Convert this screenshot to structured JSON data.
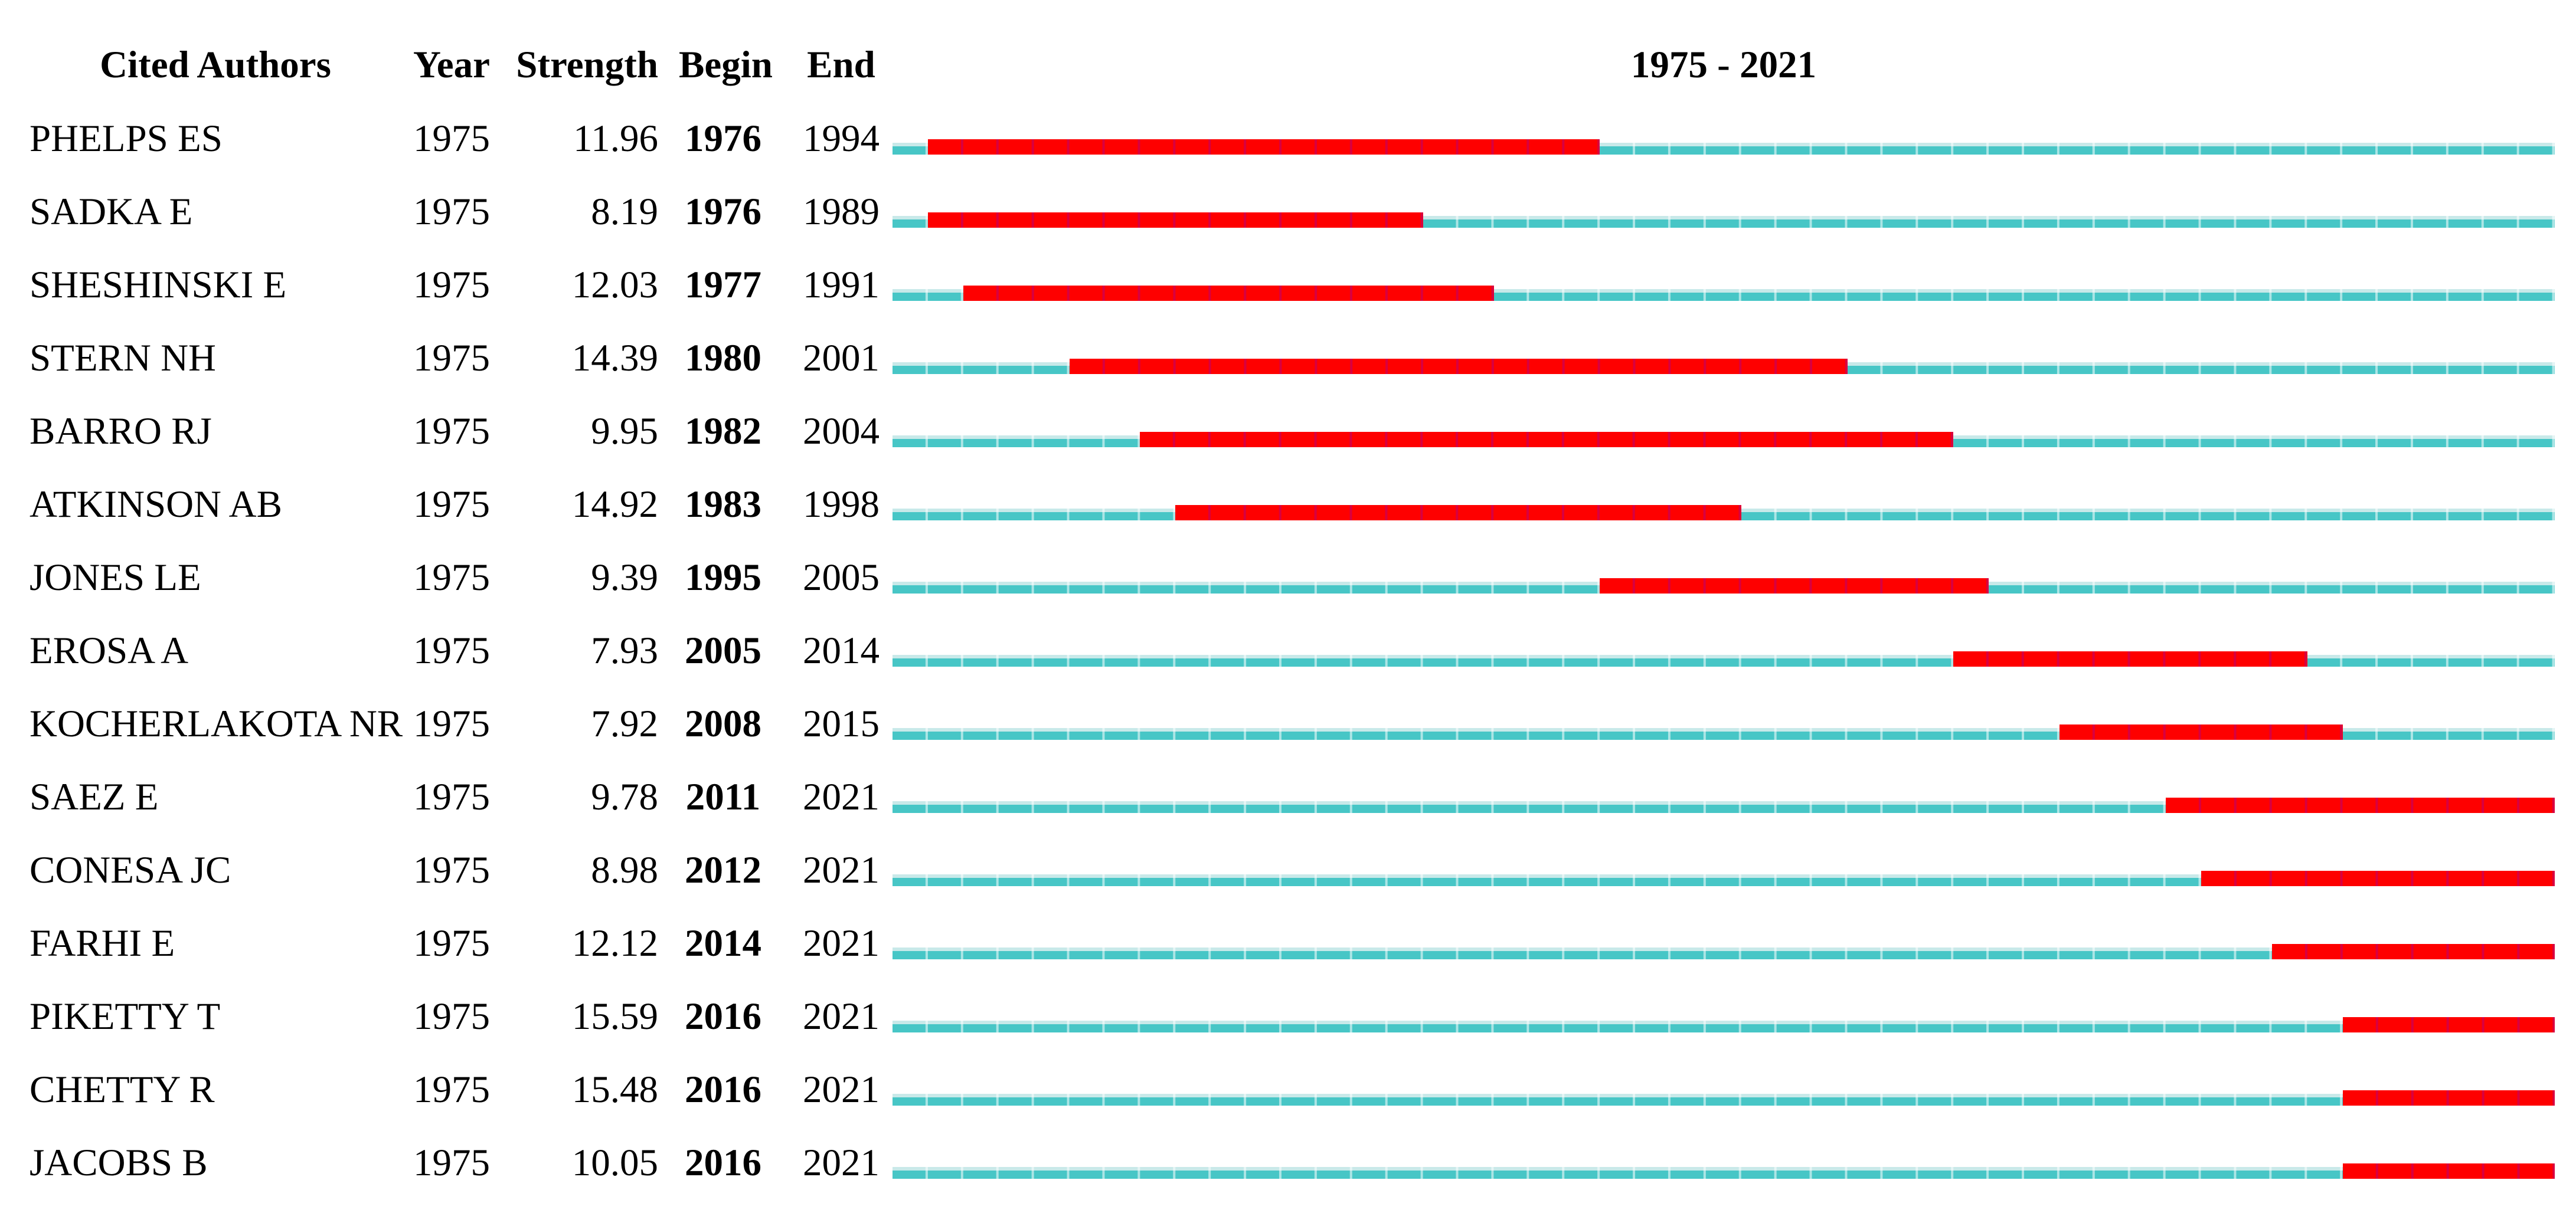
{
  "chart_data": {
    "type": "bar",
    "title": "1975 - 2021",
    "columns": [
      "Cited Authors",
      "Year",
      "Strength",
      "Begin",
      "End"
    ],
    "x_range": [
      1975,
      2021
    ],
    "layout": {
      "grid": "per-year segment ticks",
      "legend": "none"
    },
    "colors": {
      "timeline": "#47c6c6",
      "timeline_highlight": "#c8e9e9",
      "burst": "#fe0000",
      "text": "#000000"
    },
    "rows": [
      {
        "author": "PHELPS ES",
        "year": 1975,
        "strength": "11.96",
        "begin": 1976,
        "end": 1994
      },
      {
        "author": "SADKA E",
        "year": 1975,
        "strength": "8.19",
        "begin": 1976,
        "end": 1989
      },
      {
        "author": "SHESHINSKI E",
        "year": 1975,
        "strength": "12.03",
        "begin": 1977,
        "end": 1991
      },
      {
        "author": "STERN NH",
        "year": 1975,
        "strength": "14.39",
        "begin": 1980,
        "end": 2001
      },
      {
        "author": "BARRO RJ",
        "year": 1975,
        "strength": "9.95",
        "begin": 1982,
        "end": 2004
      },
      {
        "author": "ATKINSON AB",
        "year": 1975,
        "strength": "14.92",
        "begin": 1983,
        "end": 1998
      },
      {
        "author": "JONES LE",
        "year": 1975,
        "strength": "9.39",
        "begin": 1995,
        "end": 2005
      },
      {
        "author": "EROSA A",
        "year": 1975,
        "strength": "7.93",
        "begin": 2005,
        "end": 2014
      },
      {
        "author": "KOCHERLAKOTA NR",
        "year": 1975,
        "strength": "7.92",
        "begin": 2008,
        "end": 2015
      },
      {
        "author": "SAEZ E",
        "year": 1975,
        "strength": "9.78",
        "begin": 2011,
        "end": 2021
      },
      {
        "author": "CONESA JC",
        "year": 1975,
        "strength": "8.98",
        "begin": 2012,
        "end": 2021
      },
      {
        "author": "FARHI E",
        "year": 1975,
        "strength": "12.12",
        "begin": 2014,
        "end": 2021
      },
      {
        "author": "PIKETTY T",
        "year": 1975,
        "strength": "15.59",
        "begin": 2016,
        "end": 2021
      },
      {
        "author": "CHETTY R",
        "year": 1975,
        "strength": "15.48",
        "begin": 2016,
        "end": 2021
      },
      {
        "author": "JACOBS B",
        "year": 1975,
        "strength": "10.05",
        "begin": 2016,
        "end": 2021
      }
    ]
  }
}
